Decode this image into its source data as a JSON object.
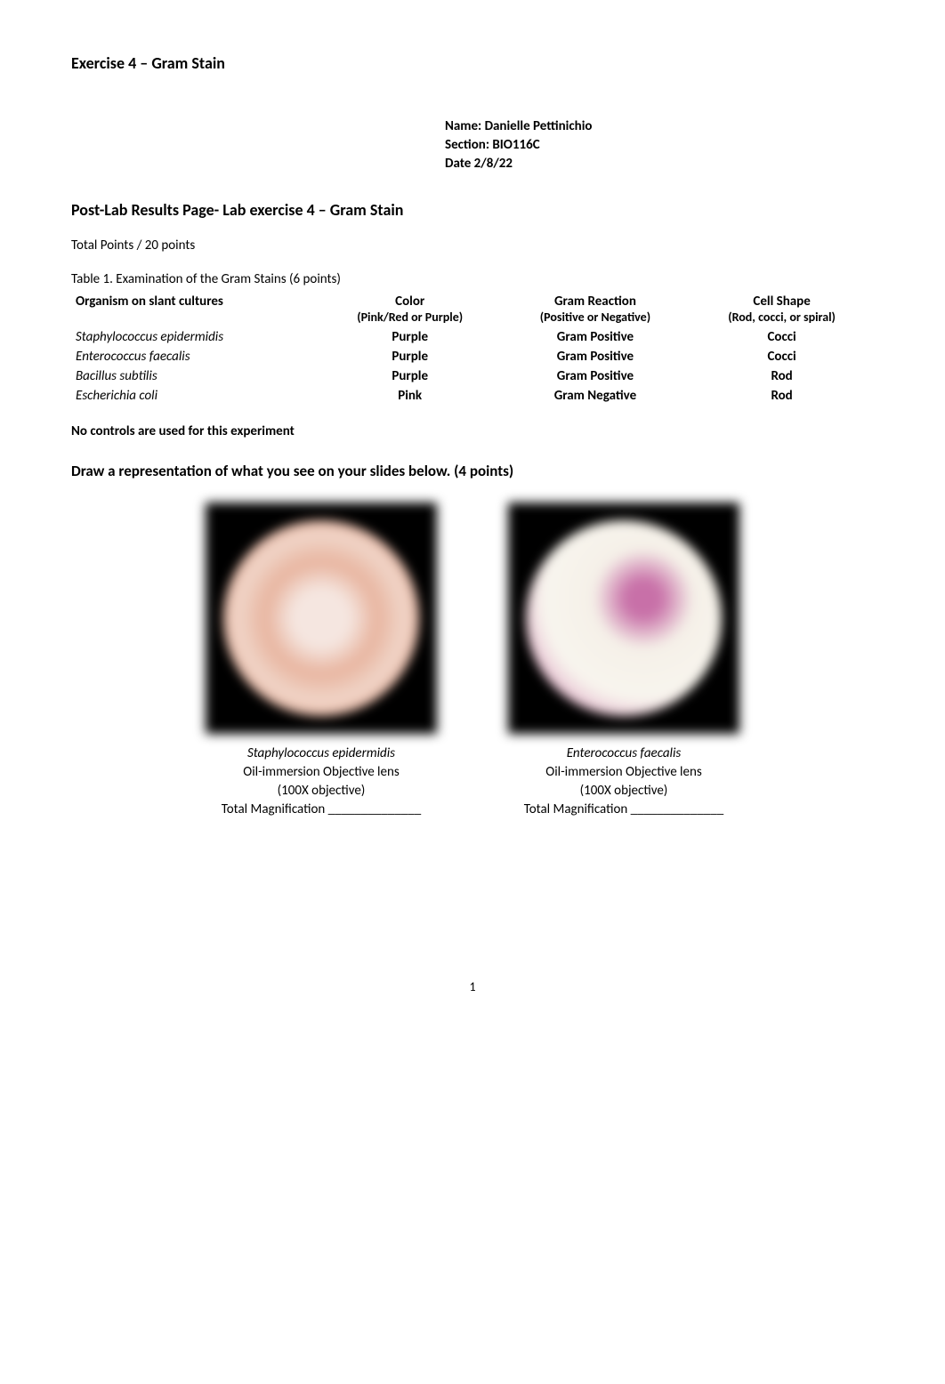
{
  "header": {
    "exercise_title": "Exercise 4 – Gram Stain"
  },
  "student": {
    "name_label": "Name: Danielle Pettinichio",
    "section_label": "Section: BIO116C",
    "date_label": "Date 2/8/22"
  },
  "main": {
    "lab_heading": "Post-Lab Results Page- Lab exercise 4 – Gram Stain",
    "total_points": "Total Points      / 20 points",
    "table_caption": "Table 1. Examination of the Gram Stains (6 points)"
  },
  "table": {
    "headers": {
      "col1_line1": "Organism on slant cultures",
      "col2_line1": "Color",
      "col2_line2": "(Pink/Red or Purple)",
      "col3_line1": "Gram Reaction",
      "col3_line2": "(Positive or Negative)",
      "col4_line1": "Cell Shape",
      "col4_line2": "(Rod, cocci, or spiral)"
    },
    "rows": [
      {
        "organism": "Staphylococcus epidermidis",
        "color": "Purple",
        "reaction": "Gram Positive",
        "shape": "Cocci"
      },
      {
        "organism": "Enterococcus faecalis",
        "color": "Purple",
        "reaction": "Gram Positive",
        "shape": "Cocci"
      },
      {
        "organism": "Bacillus subtilis",
        "color": "Purple",
        "reaction": "Gram Positive",
        "shape": "Rod"
      },
      {
        "organism": "Escherichia coli",
        "color": "Pink",
        "reaction": "Gram Negative",
        "shape": "Rod"
      }
    ]
  },
  "no_controls": "No controls are used for this experiment",
  "draw_heading": "Draw a representation of what you see on your slides below. (4 points)",
  "slides": {
    "left": {
      "organism": "Staphylococcus epidermidis",
      "lens": "Oil-immersion Objective lens",
      "objective": "(100X objective)",
      "magnification": "Total Magnification ______________"
    },
    "right": {
      "organism": "Enterococcus faecalis",
      "lens": "Oil-immersion Objective lens",
      "objective": "(100X objective)",
      "magnification": "Total Magnification ______________"
    }
  },
  "page_number": "1",
  "styling": {
    "body_bg": "#ffffff",
    "text_color": "#000000",
    "font_family": "Calibri, Arial, sans-serif",
    "body_width": 1062,
    "title_fontsize": 18,
    "body_fontsize": 15,
    "slide1_colors": [
      "#f5e6e0",
      "#e8b5a0",
      "#f0d5c8",
      "#e8a890"
    ],
    "slide2_colors": [
      "#c870a8",
      "#f5f0e8",
      "#f8f5ee",
      "#d890b8"
    ],
    "slide_bg": "#000000"
  }
}
